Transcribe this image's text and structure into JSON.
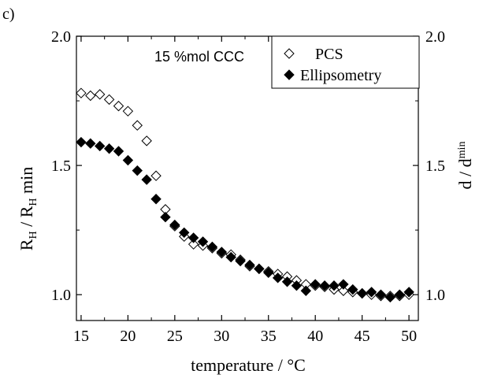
{
  "panel_label": "c)",
  "chart_data": {
    "type": "scatter",
    "annotation": "15 %mol CCC",
    "xlabel": "temperature / °C",
    "ylabel_left": {
      "base": "R",
      "sub1": "H",
      "mid": " / R",
      "sub2": "H",
      "tail": " min"
    },
    "ylabel_right": {
      "base": "d / d",
      "sup": "min"
    },
    "xlim": [
      14.5,
      51
    ],
    "ylim": [
      0.9,
      2.0
    ],
    "x_ticks": [
      15,
      20,
      25,
      30,
      35,
      40,
      45,
      50
    ],
    "x_tick_labels": [
      "15",
      "20",
      "25",
      "30",
      "35",
      "40",
      "45",
      "50"
    ],
    "y_ticks": [
      1.0,
      1.5,
      2.0
    ],
    "y_tick_labels": [
      "1.0",
      "1.5",
      "2.0"
    ],
    "y2_tick_labels": [
      "1.0",
      "1.5",
      "2.0"
    ],
    "grid": false,
    "legend_position": "top-right",
    "series": [
      {
        "name": "PCS",
        "marker": "open-diamond",
        "color": "#000000",
        "points": [
          [
            15,
            1.78
          ],
          [
            16,
            1.77
          ],
          [
            17,
            1.775
          ],
          [
            18,
            1.755
          ],
          [
            19,
            1.73
          ],
          [
            20,
            1.71
          ],
          [
            21,
            1.655
          ],
          [
            22,
            1.595
          ],
          [
            23,
            1.46
          ],
          [
            24,
            1.33
          ],
          [
            25,
            1.265
          ],
          [
            26,
            1.225
          ],
          [
            27,
            1.195
          ],
          [
            28,
            1.19
          ],
          [
            29,
            1.18
          ],
          [
            30,
            1.16
          ],
          [
            31,
            1.155
          ],
          [
            32,
            1.135
          ],
          [
            33,
            1.11
          ],
          [
            34,
            1.1
          ],
          [
            35,
            1.09
          ],
          [
            36,
            1.08
          ],
          [
            37,
            1.07
          ],
          [
            38,
            1.055
          ],
          [
            39,
            1.04
          ],
          [
            40,
            1.035
          ],
          [
            41,
            1.03
          ],
          [
            42,
            1.02
          ],
          [
            43,
            1.015
          ],
          [
            44,
            1.01
          ],
          [
            45,
            1.005
          ],
          [
            46,
            1.0
          ],
          [
            47,
            0.995
          ],
          [
            48,
            0.995
          ],
          [
            49,
            0.995
          ],
          [
            50,
            1.0
          ]
        ]
      },
      {
        "name": "Ellipsometry",
        "marker": "filled-diamond",
        "color": "#000000",
        "points": [
          [
            15,
            1.59
          ],
          [
            16,
            1.585
          ],
          [
            17,
            1.575
          ],
          [
            18,
            1.565
          ],
          [
            19,
            1.555
          ],
          [
            20,
            1.52
          ],
          [
            21,
            1.48
          ],
          [
            22,
            1.445
          ],
          [
            23,
            1.37
          ],
          [
            24,
            1.3
          ],
          [
            25,
            1.27
          ],
          [
            26,
            1.24
          ],
          [
            27,
            1.22
          ],
          [
            28,
            1.205
          ],
          [
            29,
            1.185
          ],
          [
            30,
            1.165
          ],
          [
            31,
            1.145
          ],
          [
            32,
            1.13
          ],
          [
            33,
            1.115
          ],
          [
            34,
            1.1
          ],
          [
            35,
            1.085
          ],
          [
            36,
            1.065
          ],
          [
            37,
            1.05
          ],
          [
            38,
            1.035
          ],
          [
            39,
            1.015
          ],
          [
            40,
            1.04
          ],
          [
            41,
            1.035
          ],
          [
            42,
            1.035
          ],
          [
            43,
            1.04
          ],
          [
            44,
            1.02
          ],
          [
            45,
            1.005
          ],
          [
            46,
            1.01
          ],
          [
            47,
            1.0
          ],
          [
            48,
            0.99
          ],
          [
            49,
            1.0
          ],
          [
            50,
            1.01
          ]
        ]
      }
    ]
  }
}
